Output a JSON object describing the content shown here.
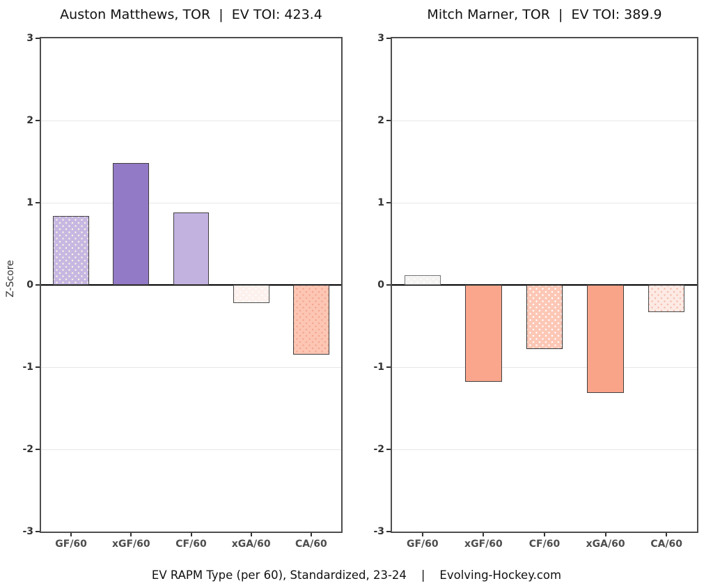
{
  "page": {
    "background": "#ffffff",
    "caption": "EV RAPM Type (per 60), Standardized, 23-24    |    Evolving-Hockey.com"
  },
  "axis": {
    "ylabel": "Z-Score",
    "ylim": [
      -3,
      3
    ],
    "yticks": [
      3,
      2,
      1,
      0,
      -1,
      -2,
      -3
    ],
    "categories": [
      "GF/60",
      "xGF/60",
      "CF/60",
      "xGA/60",
      "CA/60"
    ],
    "grid": "faint horizontal gridlines at integer z-scores, solid black zero line"
  },
  "chart_data": [
    {
      "type": "bar",
      "title": "Auston Matthews, TOR  |  EV TOI: 423.4",
      "player": "Auston Matthews",
      "team": "TOR",
      "ev_toi": "423.4",
      "xlabel": "",
      "ylabel": "Z-Score",
      "ylim": [
        -3,
        3
      ],
      "categories": [
        "GF/60",
        "xGF/60",
        "CF/60",
        "xGA/60",
        "CA/60"
      ],
      "values": [
        0.84,
        1.48,
        0.88,
        -0.22,
        -0.85
      ],
      "bars": [
        {
          "label": "GF/60",
          "value": 0.84,
          "fill": "#c6b7e2",
          "dots": "#f8f3e4",
          "border": "#3f3f3f"
        },
        {
          "label": "xGF/60",
          "value": 1.48,
          "fill": "#927ac6",
          "dots": null,
          "border": "#3f3f3f"
        },
        {
          "label": "CF/60",
          "value": 0.88,
          "fill": "#c2b2e0",
          "dots": null,
          "border": "#3f3f3f"
        },
        {
          "label": "xGA/60",
          "value": -0.22,
          "fill": "#fdf1ed",
          "dots": "#ffffff",
          "border": "#4a4a4a"
        },
        {
          "label": "CA/60",
          "value": -0.85,
          "fill": "#fdc6b4",
          "dots": "#f2a78e",
          "border": "#3f3f3f"
        }
      ]
    },
    {
      "type": "bar",
      "title": "Mitch Marner, TOR  |  EV TOI: 389.9",
      "player": "Mitch Marner",
      "team": "TOR",
      "ev_toi": "389.9",
      "xlabel": "",
      "ylabel": "Z-Score",
      "ylim": [
        -3,
        3
      ],
      "categories": [
        "GF/60",
        "xGF/60",
        "CF/60",
        "xGA/60",
        "CA/60"
      ],
      "values": [
        0.12,
        -1.18,
        -0.78,
        -1.31,
        -0.33
      ],
      "bars": [
        {
          "label": "GF/60",
          "value": 0.12,
          "fill": "#f4f3f2",
          "dots": "#ffffff",
          "border": "#757575"
        },
        {
          "label": "xGF/60",
          "value": -1.18,
          "fill": "#f9a68c",
          "dots": null,
          "border": "#3f3f3f"
        },
        {
          "label": "CF/60",
          "value": -0.78,
          "fill": "#fdc7b5",
          "dots": "#ffffff",
          "border": "#2e2e2e"
        },
        {
          "label": "xGA/60",
          "value": -1.31,
          "fill": "#f9a389",
          "dots": null,
          "border": "#3f3f3f"
        },
        {
          "label": "CA/60",
          "value": -0.33,
          "fill": "#fdeae4",
          "dots": "#f5bcae",
          "border": "#4a4a4a"
        }
      ]
    }
  ]
}
